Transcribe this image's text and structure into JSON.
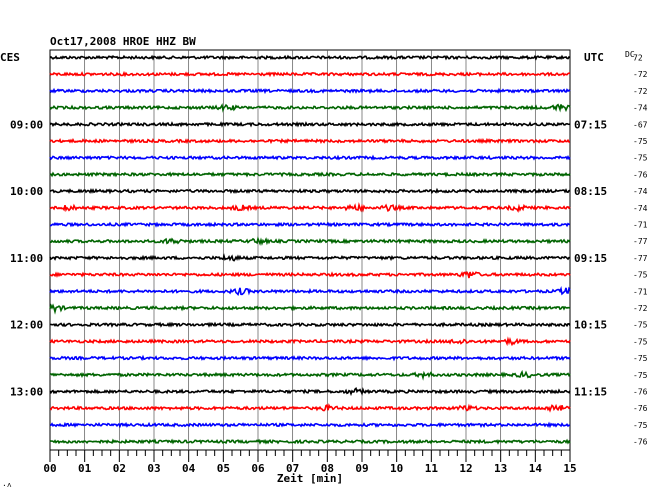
{
  "chart_data": {
    "type": "line",
    "title": "Oct17,2008   HROE HHZ BW",
    "left_axis_label": "CES",
    "right_axis_label": "UTC",
    "dc_label": "DC",
    "xlabel": "Zeit [min]",
    "x_ticks": [
      "00",
      "01",
      "02",
      "03",
      "04",
      "05",
      "06",
      "07",
      "08",
      "09",
      "10",
      "11",
      "12",
      "13",
      "14",
      "15"
    ],
    "xlim": [
      0,
      15
    ],
    "left_time_labels": [
      {
        "row": 4,
        "text": "09:00"
      },
      {
        "row": 8,
        "text": "10:00"
      },
      {
        "row": 12,
        "text": "11:00"
      },
      {
        "row": 16,
        "text": "12:00"
      },
      {
        "row": 20,
        "text": "13:00"
      }
    ],
    "right_time_labels": [
      {
        "row": 4,
        "text": "07:15"
      },
      {
        "row": 8,
        "text": "08:15"
      },
      {
        "row": 12,
        "text": "09:15"
      },
      {
        "row": 16,
        "text": "10:15"
      },
      {
        "row": 20,
        "text": "11:15"
      }
    ],
    "trace_colors": [
      "#000000",
      "#ff0000",
      "#0000ff",
      "#006400"
    ],
    "dc_offsets": [
      "72",
      "-72",
      "-72",
      "-74",
      "-67",
      "-75",
      "-75",
      "-76",
      "-74",
      "-74",
      "-71",
      "-77",
      "-77",
      "-75",
      "-71",
      "-72",
      "-75",
      "-75",
      "-75",
      "-75",
      "-76",
      "-76",
      "-75",
      "-76"
    ],
    "events": [
      {
        "row": 3,
        "minute": 5.1,
        "amp": 2.0
      },
      {
        "row": 3,
        "minute": 14.7,
        "amp": 2.5
      },
      {
        "row": 9,
        "minute": 0.5,
        "amp": 2.0
      },
      {
        "row": 9,
        "minute": 5.5,
        "amp": 2.0
      },
      {
        "row": 9,
        "minute": 8.8,
        "amp": 2.5
      },
      {
        "row": 9,
        "minute": 9.8,
        "amp": 2.0
      },
      {
        "row": 9,
        "minute": 13.5,
        "amp": 2.0
      },
      {
        "row": 11,
        "minute": 3.5,
        "amp": 2.2
      },
      {
        "row": 11,
        "minute": 6.0,
        "amp": 2.0
      },
      {
        "row": 12,
        "minute": 5.2,
        "amp": 2.2
      },
      {
        "row": 13,
        "minute": 12.1,
        "amp": 3.0
      },
      {
        "row": 14,
        "minute": 5.5,
        "amp": 2.5
      },
      {
        "row": 14,
        "minute": 14.9,
        "amp": 2.5
      },
      {
        "row": 15,
        "minute": 0.1,
        "amp": 3.0
      },
      {
        "row": 17,
        "minute": 11.8,
        "amp": 2.0
      },
      {
        "row": 17,
        "minute": 13.3,
        "amp": 2.0
      },
      {
        "row": 19,
        "minute": 10.8,
        "amp": 2.0
      },
      {
        "row": 19,
        "minute": 13.7,
        "amp": 2.0
      },
      {
        "row": 20,
        "minute": 8.8,
        "amp": 2.0
      },
      {
        "row": 21,
        "minute": 8.0,
        "amp": 2.0
      },
      {
        "row": 21,
        "minute": 12.0,
        "amp": 2.0
      },
      {
        "row": 21,
        "minute": 14.6,
        "amp": 3.5
      }
    ]
  },
  "corner_mark": "·˄"
}
